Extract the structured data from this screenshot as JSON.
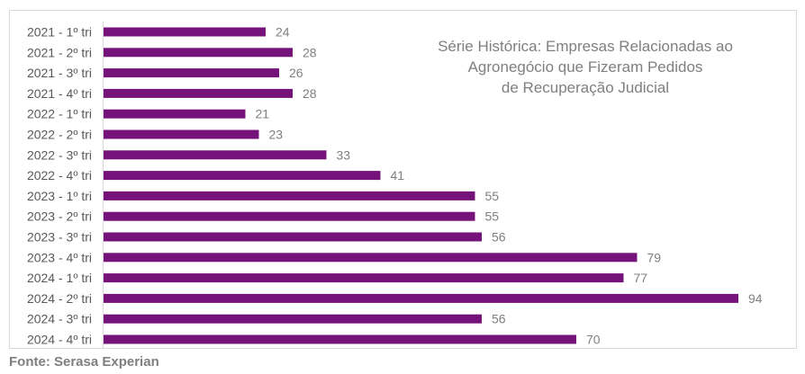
{
  "chart_data": {
    "type": "bar",
    "orientation": "horizontal",
    "title_lines": [
      "Série Histórica: Empresas Relacionadas ao",
      "Agronegócio que Fizeram Pedidos",
      "de Recuperação Judicial"
    ],
    "categories": [
      "2021 - 1º tri",
      "2021 - 2º tri",
      "2021 - 3º tri",
      "2021 - 4º tri",
      "2022 - 1º tri",
      "2022 - 2º tri",
      "2022 - 3º tri",
      "2022 - 4º tri",
      "2023 - 1º tri",
      "2023 - 2º tri",
      "2023 - 3º tri",
      "2023 - 4º tri",
      "2024 - 1º tri",
      "2024 - 2º tri",
      "2024 - 3º tri",
      "2024 - 4º tri"
    ],
    "values": [
      24,
      28,
      26,
      28,
      21,
      23,
      33,
      41,
      55,
      55,
      56,
      79,
      77,
      94,
      56,
      70
    ],
    "xlabel": "",
    "ylabel": "",
    "xlim": [
      0,
      100
    ],
    "grid": false,
    "legend": "none",
    "bar_color": "#76137a"
  },
  "source": "Fonte: Serasa Experian"
}
